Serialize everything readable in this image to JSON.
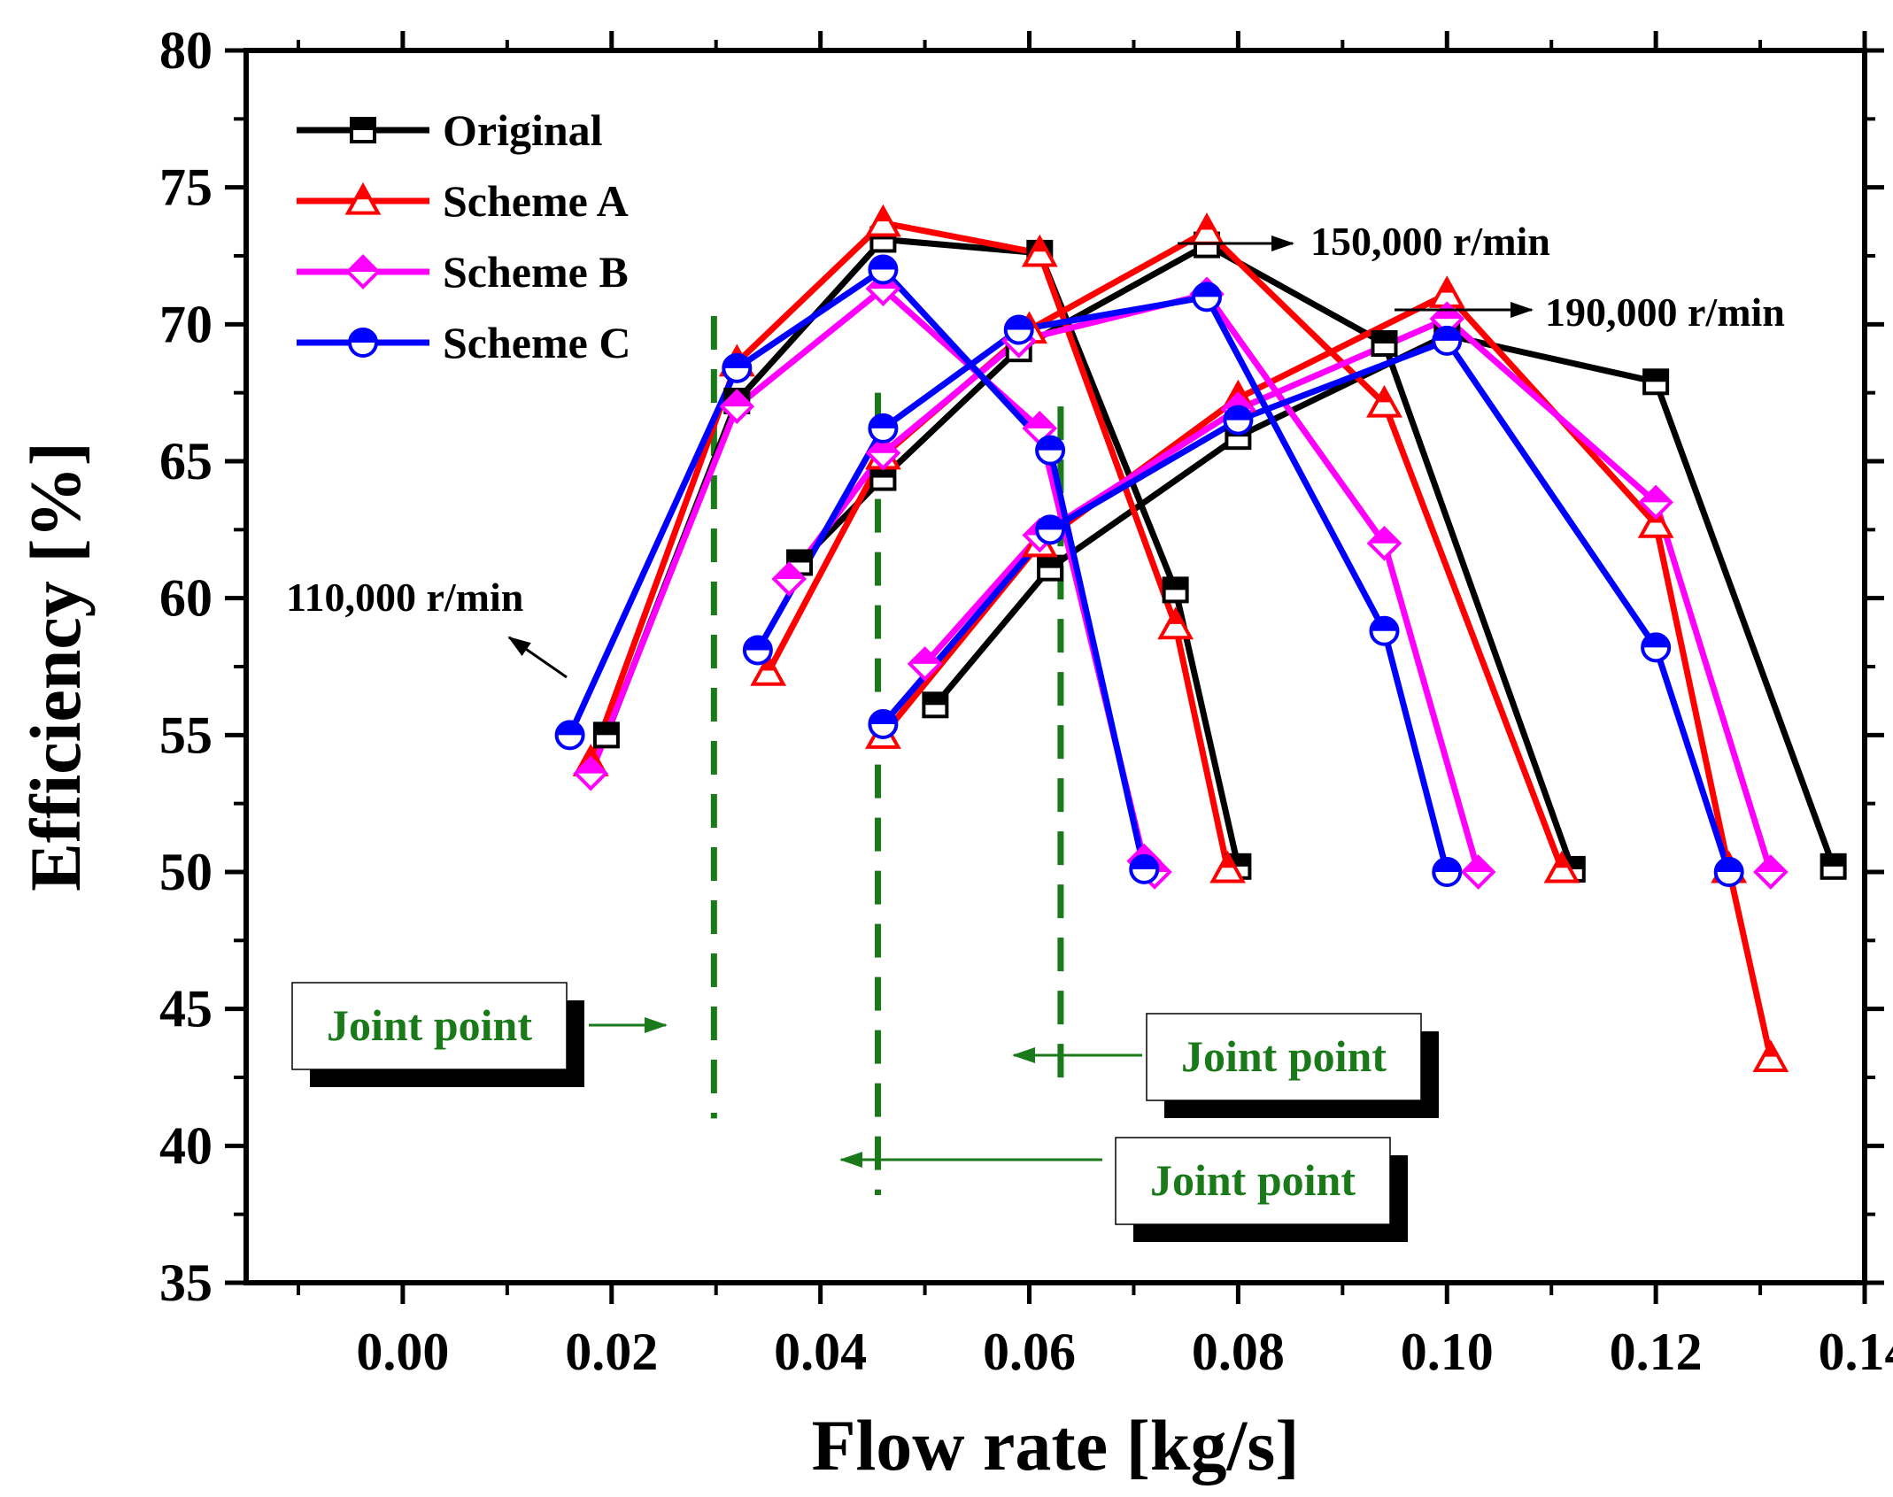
{
  "chart_data": {
    "type": "line",
    "title": "",
    "xlabel": "Flow rate [kg/s]",
    "ylabel": "Efficiency [%]",
    "xlim": [
      -0.015,
      0.14
    ],
    "ylim": [
      35,
      80
    ],
    "xticks": [
      "0.00",
      "0.02",
      "0.04",
      "0.06",
      "0.08",
      "0.10",
      "0.12",
      "0.14"
    ],
    "yticks": [
      "35",
      "40",
      "45",
      "50",
      "55",
      "60",
      "65",
      "70",
      "75",
      "80"
    ],
    "legend_position": "top-left",
    "series": [
      {
        "name": "Original",
        "color": "#000000",
        "marker": "square",
        "curves": [
          {
            "speed": "110,000 r/min",
            "x": [
              0.0195,
              0.032,
              0.046,
              0.061,
              0.074,
              0.08
            ],
            "y": [
              55.0,
              67.2,
              73.1,
              72.6,
              60.3,
              50.2
            ]
          },
          {
            "speed": "150,000 r/min",
            "x": [
              0.038,
              0.046,
              0.059,
              0.077,
              0.094,
              0.112
            ],
            "y": [
              61.3,
              64.4,
              69.1,
              72.9,
              69.3,
              50.1
            ]
          },
          {
            "speed": "190,000 r/min",
            "x": [
              0.051,
              0.062,
              0.08,
              0.1,
              0.12,
              0.137
            ],
            "y": [
              56.1,
              61.1,
              65.9,
              69.6,
              67.9,
              50.2
            ]
          }
        ]
      },
      {
        "name": "Scheme A",
        "color": "#ff0000",
        "marker": "triangle",
        "curves": [
          {
            "speed": "110,000 r/min",
            "x": [
              0.018,
              0.032,
              0.046,
              0.061,
              0.074,
              0.079
            ],
            "y": [
              54.0,
              68.6,
              73.7,
              72.6,
              59.0,
              50.1
            ]
          },
          {
            "speed": "150,000 r/min",
            "x": [
              0.035,
              0.046,
              0.06,
              0.077,
              0.094,
              0.111
            ],
            "y": [
              57.3,
              65.2,
              69.8,
              73.4,
              67.1,
              50.1
            ]
          },
          {
            "speed": "190,000 r/min",
            "x": [
              0.046,
              0.061,
              0.08,
              0.1,
              0.12,
              0.127,
              0.131
            ],
            "y": [
              55.0,
              62.0,
              67.3,
              71.1,
              62.7,
              50.1,
              43.2
            ]
          }
        ]
      },
      {
        "name": "Scheme B",
        "color": "#ff00ff",
        "marker": "diamond",
        "curves": [
          {
            "speed": "110,000 r/min",
            "x": [
              0.018,
              0.032,
              0.046,
              0.061,
              0.071,
              0.072
            ],
            "y": [
              53.6,
              67.0,
              71.3,
              66.2,
              50.4,
              50.0
            ]
          },
          {
            "speed": "150,000 r/min",
            "x": [
              0.037,
              0.046,
              0.059,
              0.077,
              0.094,
              0.103
            ],
            "y": [
              60.7,
              65.3,
              69.4,
              71.1,
              62.0,
              50.0
            ]
          },
          {
            "speed": "190,000 r/min",
            "x": [
              0.05,
              0.061,
              0.08,
              0.1,
              0.12,
              0.131
            ],
            "y": [
              57.6,
              62.3,
              66.9,
              70.2,
              63.5,
              50.0
            ]
          }
        ]
      },
      {
        "name": "Scheme C",
        "color": "#0000ff",
        "marker": "circle",
        "curves": [
          {
            "speed": "110,000 r/min",
            "x": [
              0.016,
              0.032,
              0.046,
              0.062,
              0.071
            ],
            "y": [
              55.0,
              68.4,
              72.0,
              65.4,
              50.1
            ]
          },
          {
            "speed": "150,000 r/min",
            "x": [
              0.034,
              0.046,
              0.059,
              0.077,
              0.094,
              0.1
            ],
            "y": [
              58.1,
              66.2,
              69.8,
              71.0,
              58.8,
              50.0
            ]
          },
          {
            "speed": "190,000 r/min",
            "x": [
              0.046,
              0.062,
              0.08,
              0.1,
              0.12,
              0.127
            ],
            "y": [
              55.4,
              62.5,
              66.5,
              69.4,
              58.2,
              50.0
            ]
          }
        ]
      }
    ],
    "speed_annotations": [
      {
        "text": "110,000 r/min",
        "near_x": 0.018,
        "near_y": 55
      },
      {
        "text": "150,000 r/min",
        "near_x": 0.078,
        "near_y": 72.9
      },
      {
        "text": "190,000 r/min",
        "near_x": 0.102,
        "near_y": 70.6
      }
    ],
    "joint_points": [
      {
        "label": "Joint point",
        "x": 0.0298,
        "y_from": 41.0,
        "y_to": 70.3
      },
      {
        "label": "Joint point",
        "x": 0.0455,
        "y_from": 38.2,
        "y_to": 67.5
      },
      {
        "label": "Joint point",
        "x": 0.063,
        "y_from": 42.3,
        "y_to": 67.0
      }
    ],
    "joint_color": "#1a7a1a"
  }
}
